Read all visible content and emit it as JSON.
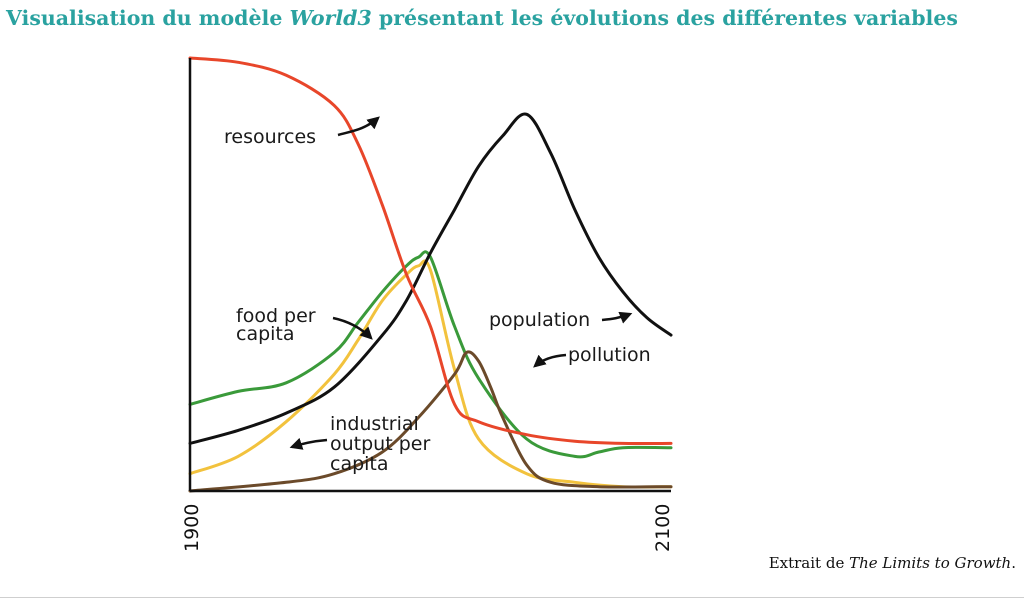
{
  "header": {
    "title_prefix": "Visualisation du modèle ",
    "title_model": "World3",
    "title_suffix": " présentant les évolutions des différentes variables"
  },
  "caption": {
    "prefix": "Extrait de ",
    "book": "The Limits to Growth",
    "suffix": "."
  },
  "chart_data": {
    "type": "line",
    "xlim": [
      1900,
      2100
    ],
    "x_ticks": [
      "1900",
      "2100"
    ],
    "ylim": [
      0,
      1
    ],
    "grid": false,
    "series": [
      {
        "name": "resources",
        "label": "resources",
        "color": "#e8462a",
        "points": [
          [
            1900,
            1.0
          ],
          [
            1920,
            0.99
          ],
          [
            1940,
            0.96
          ],
          [
            1960,
            0.89
          ],
          [
            1970,
            0.8
          ],
          [
            1980,
            0.66
          ],
          [
            1990,
            0.5
          ],
          [
            2000,
            0.38
          ],
          [
            2010,
            0.2
          ],
          [
            2020,
            0.16
          ],
          [
            2040,
            0.13
          ],
          [
            2060,
            0.115
          ],
          [
            2080,
            0.11
          ],
          [
            2100,
            0.11
          ]
        ]
      },
      {
        "name": "population",
        "label": "population",
        "color": "#111111",
        "points": [
          [
            1900,
            0.11
          ],
          [
            1920,
            0.14
          ],
          [
            1940,
            0.18
          ],
          [
            1960,
            0.24
          ],
          [
            1980,
            0.36
          ],
          [
            1990,
            0.44
          ],
          [
            2000,
            0.55
          ],
          [
            2010,
            0.65
          ],
          [
            2020,
            0.75
          ],
          [
            2030,
            0.82
          ],
          [
            2040,
            0.87
          ],
          [
            2050,
            0.78
          ],
          [
            2060,
            0.65
          ],
          [
            2070,
            0.54
          ],
          [
            2080,
            0.46
          ],
          [
            2090,
            0.4
          ],
          [
            2100,
            0.36
          ]
        ]
      },
      {
        "name": "food per capita",
        "label": "food per\ncapita",
        "color": "#3a9a3a",
        "points": [
          [
            1900,
            0.2
          ],
          [
            1920,
            0.23
          ],
          [
            1940,
            0.25
          ],
          [
            1960,
            0.32
          ],
          [
            1970,
            0.39
          ],
          [
            1980,
            0.46
          ],
          [
            1990,
            0.52
          ],
          [
            1995,
            0.54
          ],
          [
            2000,
            0.54
          ],
          [
            2010,
            0.38
          ],
          [
            2020,
            0.26
          ],
          [
            2040,
            0.12
          ],
          [
            2060,
            0.08
          ],
          [
            2070,
            0.09
          ],
          [
            2080,
            0.1
          ],
          [
            2100,
            0.1
          ]
        ]
      },
      {
        "name": "industrial output per capita",
        "label": "industrial\noutput per\ncapita",
        "color": "#f2c23d",
        "points": [
          [
            1900,
            0.04
          ],
          [
            1920,
            0.08
          ],
          [
            1940,
            0.16
          ],
          [
            1960,
            0.27
          ],
          [
            1970,
            0.35
          ],
          [
            1980,
            0.44
          ],
          [
            1990,
            0.5
          ],
          [
            1995,
            0.52
          ],
          [
            2000,
            0.51
          ],
          [
            2010,
            0.28
          ],
          [
            2020,
            0.12
          ],
          [
            2040,
            0.04
          ],
          [
            2060,
            0.02
          ],
          [
            2080,
            0.01
          ],
          [
            2100,
            0.01
          ]
        ]
      },
      {
        "name": "pollution",
        "label": "pollution",
        "color": "#6b4a2a",
        "points": [
          [
            1900,
            0.0
          ],
          [
            1940,
            0.02
          ],
          [
            1960,
            0.04
          ],
          [
            1980,
            0.09
          ],
          [
            1995,
            0.17
          ],
          [
            2010,
            0.27
          ],
          [
            2015,
            0.32
          ],
          [
            2020,
            0.3
          ],
          [
            2025,
            0.24
          ],
          [
            2030,
            0.17
          ],
          [
            2040,
            0.06
          ],
          [
            2050,
            0.02
          ],
          [
            2070,
            0.01
          ],
          [
            2100,
            0.01
          ]
        ]
      }
    ]
  }
}
